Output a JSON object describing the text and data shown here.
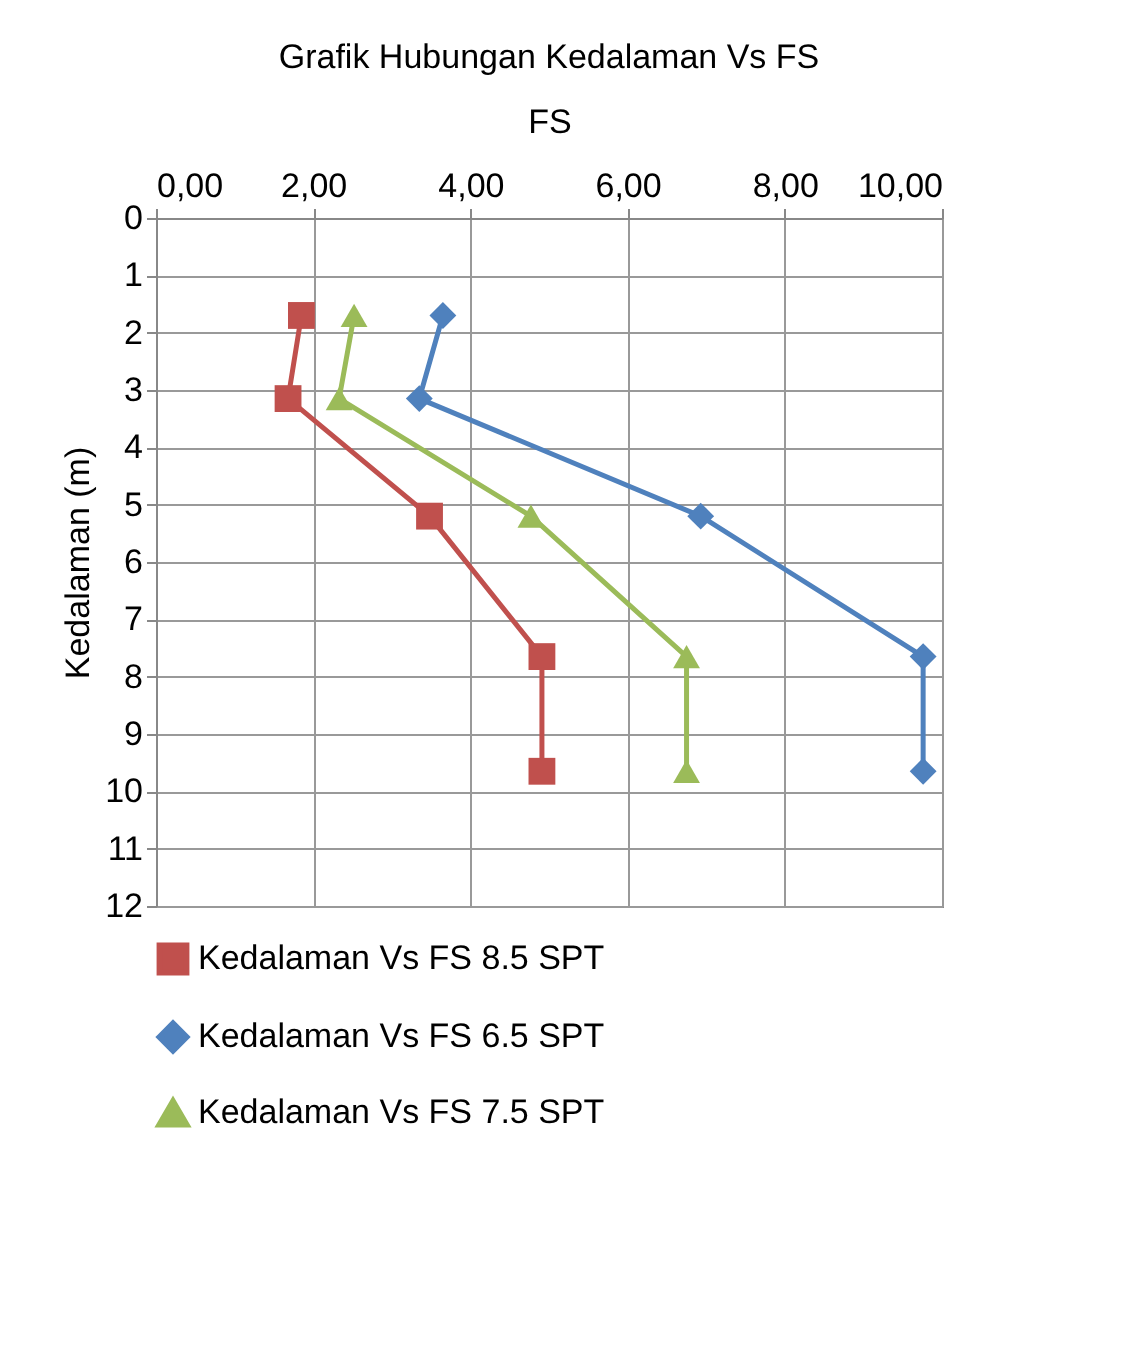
{
  "chart_data": {
    "type": "line",
    "title": "Grafik  Hubungan Kedalaman Vs FS",
    "xlabel": "FS",
    "ylabel": "Kedalaman  (m)",
    "xlim": [
      0,
      10
    ],
    "xticks": [
      {
        "value": 0,
        "label": "0,00"
      },
      {
        "value": 2,
        "label": "2,00"
      },
      {
        "value": 4,
        "label": "4,00"
      },
      {
        "value": 6,
        "label": "6,00"
      },
      {
        "value": 8,
        "label": "8,00"
      },
      {
        "value": 10,
        "label": "10,00"
      }
    ],
    "ylim": [
      12,
      0
    ],
    "yticks": [
      0,
      1,
      2,
      3,
      4,
      5,
      6,
      7,
      8,
      9,
      10,
      11,
      12
    ],
    "grid": true,
    "legend": "bottom",
    "line_style": "solid",
    "series": [
      {
        "name": "Kedalaman Vs FS 8.5 SPT",
        "color": "#c0504d",
        "marker": "square",
        "x": [
          1.85,
          1.68,
          3.48,
          4.91,
          4.91
        ],
        "values": [
          1.7,
          3.15,
          5.2,
          7.65,
          9.65
        ]
      },
      {
        "name": "Kedalaman Vs FS 6.5 SPT",
        "color": "#4f81bd",
        "marker": "diamond",
        "x": [
          3.65,
          3.35,
          6.93,
          9.76,
          9.76
        ],
        "values": [
          1.7,
          3.15,
          5.2,
          7.65,
          9.65
        ]
      },
      {
        "name": "Kedalaman Vs FS 7.5 SPT",
        "color": "#9bbb59",
        "marker": "triangle",
        "x": [
          2.52,
          2.33,
          4.77,
          6.75,
          6.75
        ],
        "values": [
          1.7,
          3.15,
          5.2,
          7.65,
          9.65
        ]
      }
    ]
  }
}
